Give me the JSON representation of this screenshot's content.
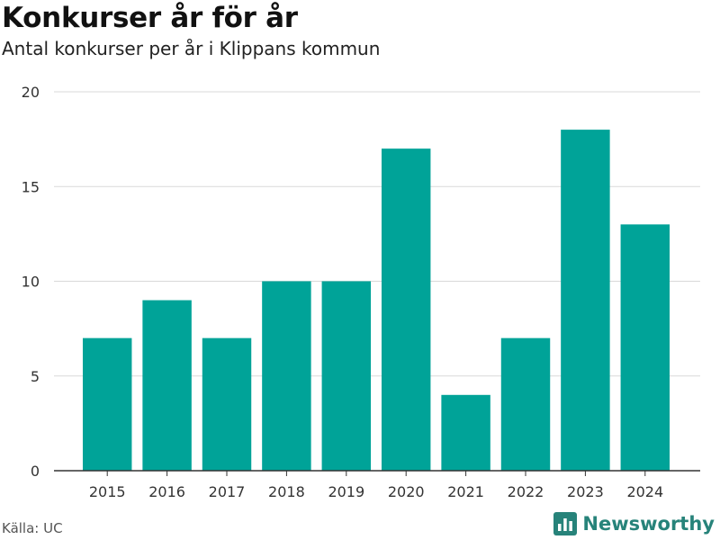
{
  "header": {
    "title": "Konkurser år för år",
    "subtitle": "Antal konkurser per år i Klippans kommun"
  },
  "footer": {
    "source": "Källa: UC",
    "brand": "Newsworthy",
    "brand_icon": "bar-chart-logo-icon"
  },
  "colors": {
    "bar": "#00a398",
    "grid": "#d9d9d9",
    "axis": "#333333",
    "tick_text": "#333333",
    "brand": "#27837a"
  },
  "chart_data": {
    "type": "bar",
    "categories": [
      "2015",
      "2016",
      "2017",
      "2018",
      "2019",
      "2020",
      "2021",
      "2022",
      "2023",
      "2024"
    ],
    "values": [
      7,
      9,
      7,
      10,
      10,
      17,
      4,
      7,
      18,
      13
    ],
    "title": "Konkurser år för år",
    "subtitle": "Antal konkurser per år i Klippans kommun",
    "xlabel": "",
    "ylabel": "",
    "ylim": [
      0,
      20
    ],
    "yticks": [
      0,
      5,
      10,
      15,
      20
    ],
    "grid": true,
    "legend": "none"
  }
}
